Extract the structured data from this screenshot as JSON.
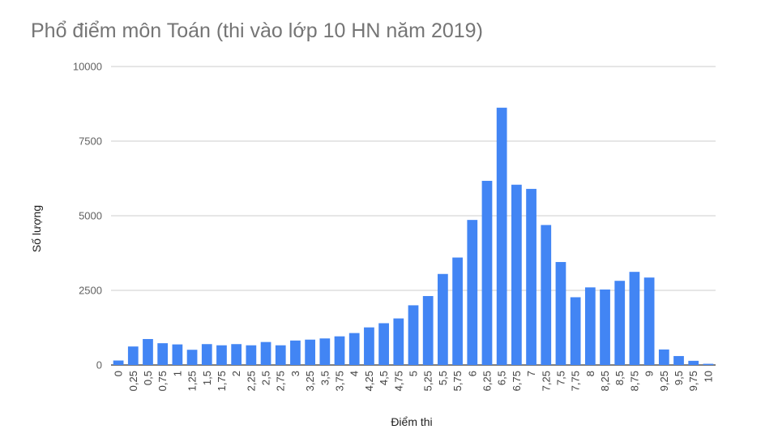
{
  "chart_data": {
    "type": "bar",
    "title": "Phổ điểm môn Toán (thi vào lớp 10 HN năm 2019)",
    "xlabel": "Điểm thi",
    "ylabel": "Số lượng",
    "ylim": [
      0,
      10000
    ],
    "yticks": [
      "0",
      "2500",
      "5000",
      "7500",
      "10000"
    ],
    "grid": true,
    "legend": "none",
    "bar_color": "#4285f4",
    "categories": [
      "0",
      "0,25",
      "0,5",
      "0,75",
      "1",
      "1,25",
      "1,5",
      "1,75",
      "2",
      "2,25",
      "2,5",
      "2,75",
      "3",
      "3,25",
      "3,5",
      "3,75",
      "4",
      "4,25",
      "4,5",
      "4,75",
      "5",
      "5,25",
      "5,5",
      "5,75",
      "6",
      "6,25",
      "6,5",
      "6,75",
      "7",
      "7,25",
      "7,5",
      "7,75",
      "8",
      "8,25",
      "8,5",
      "8,75",
      "9",
      "9,25",
      "9,5",
      "9,75",
      "10"
    ],
    "values": [
      150,
      620,
      870,
      730,
      690,
      510,
      700,
      660,
      700,
      660,
      770,
      660,
      820,
      850,
      890,
      960,
      1070,
      1260,
      1400,
      1560,
      2000,
      2310,
      3050,
      3600,
      4860,
      6170,
      8620,
      6040,
      5900,
      4690,
      3450,
      2270,
      2600,
      2530,
      2820,
      3120,
      2930,
      520,
      300,
      140,
      40
    ]
  }
}
